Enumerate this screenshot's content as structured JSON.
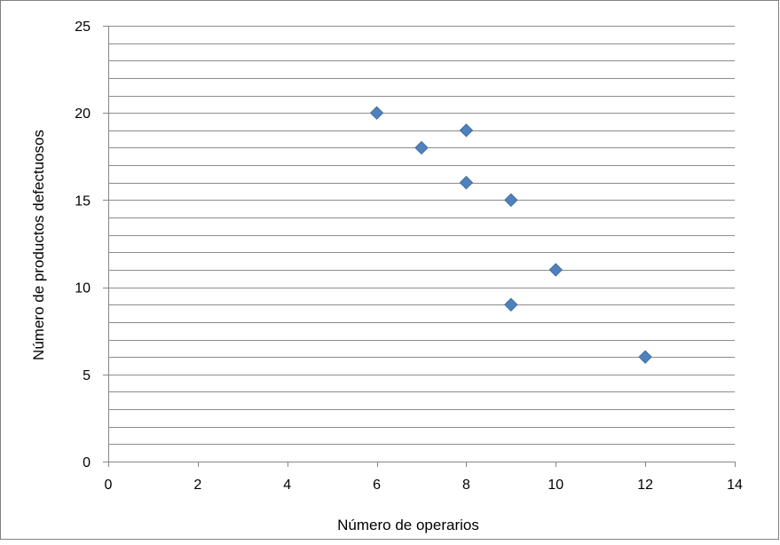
{
  "chart_data": {
    "type": "scatter",
    "title": "",
    "xlabel": "Número de operarios",
    "ylabel": "Número de productos defectuosos",
    "xlim": [
      0,
      14
    ],
    "ylim": [
      0,
      25
    ],
    "x_ticks": [
      "0",
      "2",
      "4",
      "6",
      "8",
      "10",
      "12",
      "14"
    ],
    "y_ticks": [
      "0",
      "5",
      "10",
      "15",
      "20",
      "25"
    ],
    "grid": "horizontal",
    "legend": "none",
    "marker": "diamond",
    "marker_color": "#4F81BD",
    "points": [
      {
        "x": 6,
        "y": 20
      },
      {
        "x": 7,
        "y": 18
      },
      {
        "x": 8,
        "y": 19
      },
      {
        "x": 8,
        "y": 16
      },
      {
        "x": 9,
        "y": 15
      },
      {
        "x": 10,
        "y": 11
      },
      {
        "x": 9,
        "y": 9
      },
      {
        "x": 12,
        "y": 6
      }
    ]
  }
}
